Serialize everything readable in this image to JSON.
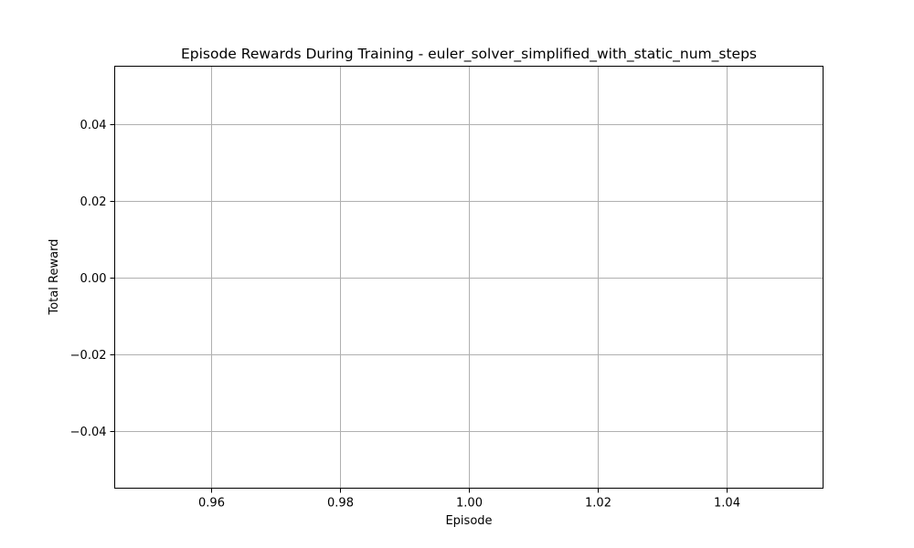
{
  "chart_data": {
    "type": "line",
    "title": "Episode Rewards During Training - euler_solver_simplified_with_static_num_steps",
    "xlabel": "Episode",
    "ylabel": "Total Reward",
    "xlim": [
      0.945,
      1.055
    ],
    "ylim": [
      -0.055,
      0.055
    ],
    "x_ticks": [
      0.96,
      0.98,
      1.0,
      1.02,
      1.04
    ],
    "x_tick_labels": [
      "0.96",
      "0.98",
      "1.00",
      "1.02",
      "1.04"
    ],
    "y_ticks": [
      -0.04,
      -0.02,
      0.0,
      0.02,
      0.04
    ],
    "y_tick_labels": [
      "−0.04",
      "−0.02",
      "0.00",
      "0.02",
      "0.04"
    ],
    "grid": true,
    "series": [
      {
        "x": [],
        "values": []
      }
    ],
    "colors": {
      "grid": "#b0b0b0",
      "axes": "#000000",
      "background": "#ffffff"
    }
  }
}
